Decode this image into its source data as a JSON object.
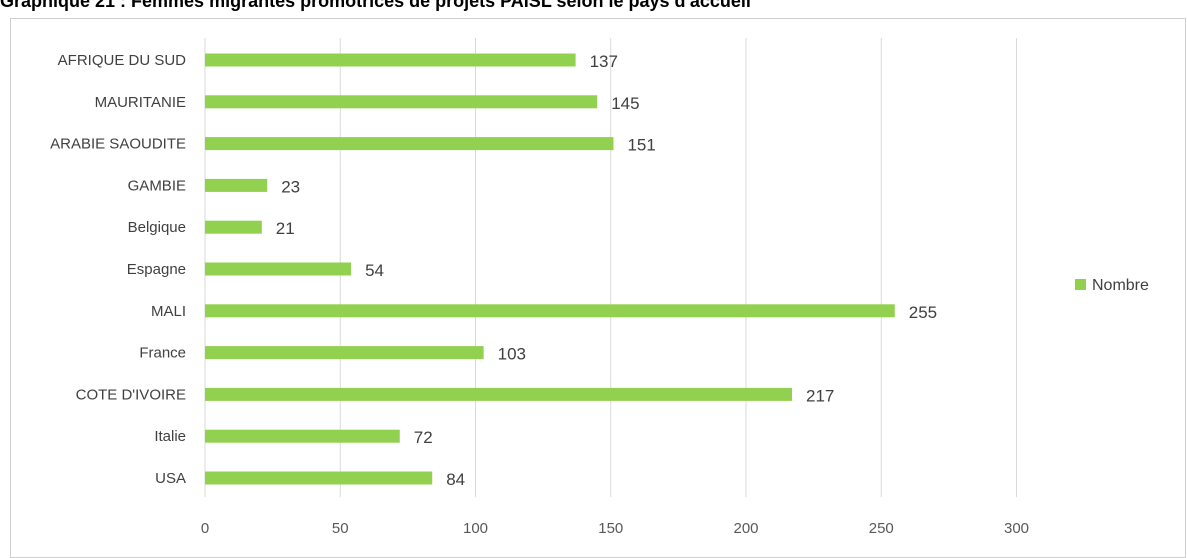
{
  "title": "Graphique 21 : Femmes migrantes promotrices de projets PAISL selon le pays d'accueil",
  "colors": {
    "bar": "#92d050",
    "grid": "#d9d9d9",
    "text": "#404040"
  },
  "chart_data": {
    "type": "bar",
    "orientation": "horizontal",
    "categories": [
      "AFRIQUE DU SUD",
      "MAURITANIE",
      "ARABIE SAOUDITE",
      "GAMBIE",
      "Belgique",
      "Espagne",
      "MALI",
      "France",
      "COTE D'IVOIRE",
      "Italie",
      "USA"
    ],
    "series": [
      {
        "name": "Nombre",
        "values": [
          137,
          145,
          151,
          23,
          21,
          54,
          255,
          103,
          217,
          72,
          84
        ]
      }
    ],
    "xlim": [
      0,
      300
    ],
    "xticks": [
      0,
      50,
      100,
      150,
      200,
      250,
      300
    ],
    "grid": true,
    "legend_position": "right",
    "data_labels": true
  }
}
